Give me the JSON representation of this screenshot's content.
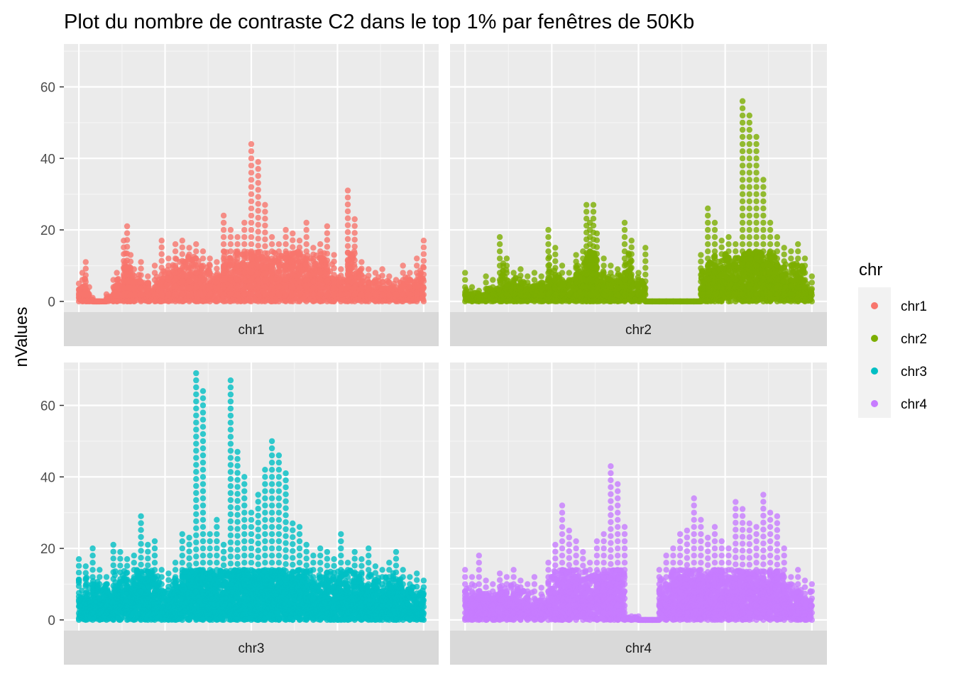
{
  "chart_data": {
    "type": "scatter",
    "title": "Plot du nombre de contraste C2 dans le top 1% par fenêtres de 50Kb",
    "ylabel": "nValues",
    "xlabel": "",
    "ylim": [
      -3,
      72
    ],
    "yticks": [
      0,
      20,
      40,
      60
    ],
    "grid": true,
    "legend": {
      "title": "chr",
      "position": "right",
      "entries": [
        {
          "label": "chr1",
          "color": "#F8766D"
        },
        {
          "label": "chr2",
          "color": "#7CAE00"
        },
        {
          "label": "chr3",
          "color": "#00BFC4"
        },
        {
          "label": "chr4",
          "color": "#C77CFF"
        }
      ]
    },
    "panels": [
      {
        "strip": "chr1",
        "color": "#F8766D",
        "x": [
          0.0,
          0.01,
          0.02,
          0.03,
          0.04,
          0.05,
          0.06,
          0.08,
          0.1,
          0.11,
          0.13,
          0.14,
          0.15,
          0.16,
          0.18,
          0.2,
          0.22,
          0.24,
          0.26,
          0.28,
          0.3,
          0.32,
          0.34,
          0.36,
          0.38,
          0.4,
          0.42,
          0.44,
          0.46,
          0.48,
          0.5,
          0.52,
          0.54,
          0.56,
          0.58,
          0.6,
          0.62,
          0.64,
          0.66,
          0.68,
          0.7,
          0.72,
          0.74,
          0.76,
          0.78,
          0.8,
          0.82,
          0.84,
          0.86,
          0.88,
          0.9,
          0.92,
          0.94,
          0.96,
          0.98,
          1.0
        ],
        "y": [
          5,
          8,
          11,
          4,
          1,
          0,
          0,
          2,
          6,
          8,
          17,
          21,
          13,
          9,
          11,
          7,
          10,
          17,
          12,
          16,
          17,
          15,
          16,
          14,
          12,
          11,
          24,
          20,
          18,
          22,
          44,
          39,
          27,
          18,
          16,
          20,
          19,
          17,
          22,
          15,
          16,
          21,
          13,
          9,
          31,
          23,
          11,
          9,
          8,
          9,
          7,
          6,
          10,
          8,
          12,
          17
        ]
      },
      {
        "strip": "chr2",
        "color": "#7CAE00",
        "x": [
          0.0,
          0.02,
          0.04,
          0.06,
          0.08,
          0.1,
          0.12,
          0.14,
          0.16,
          0.18,
          0.2,
          0.22,
          0.24,
          0.26,
          0.28,
          0.3,
          0.32,
          0.34,
          0.35,
          0.36,
          0.37,
          0.38,
          0.4,
          0.42,
          0.44,
          0.46,
          0.48,
          0.5,
          0.52,
          0.54,
          0.56,
          0.58,
          0.6,
          0.62,
          0.64,
          0.66,
          0.68,
          0.7,
          0.72,
          0.74,
          0.76,
          0.78,
          0.8,
          0.82,
          0.84,
          0.86,
          0.88,
          0.9,
          0.92,
          0.94,
          0.96,
          0.98,
          1.0
        ],
        "y": [
          8,
          4,
          3,
          7,
          6,
          18,
          12,
          8,
          9,
          7,
          8,
          7,
          20,
          15,
          10,
          8,
          13,
          14,
          27,
          22,
          27,
          19,
          12,
          10,
          9,
          22,
          17,
          8,
          15,
          0,
          0,
          0,
          0,
          0,
          0,
          0,
          13,
          26,
          22,
          17,
          18,
          16,
          56,
          52,
          46,
          34,
          22,
          18,
          15,
          14,
          16,
          12,
          7
        ]
      },
      {
        "strip": "chr3",
        "color": "#00BFC4",
        "x": [
          0.0,
          0.02,
          0.04,
          0.06,
          0.08,
          0.1,
          0.12,
          0.14,
          0.16,
          0.18,
          0.2,
          0.22,
          0.24,
          0.26,
          0.28,
          0.3,
          0.32,
          0.34,
          0.36,
          0.38,
          0.4,
          0.42,
          0.44,
          0.46,
          0.48,
          0.5,
          0.52,
          0.54,
          0.56,
          0.58,
          0.6,
          0.62,
          0.64,
          0.66,
          0.68,
          0.7,
          0.72,
          0.74,
          0.76,
          0.78,
          0.8,
          0.82,
          0.84,
          0.86,
          0.88,
          0.9,
          0.92,
          0.94,
          0.96,
          0.98,
          1.0
        ],
        "y": [
          17,
          15,
          20,
          14,
          12,
          21,
          19,
          17,
          18,
          29,
          21,
          22,
          14,
          13,
          16,
          24,
          23,
          69,
          64,
          24,
          28,
          21,
          67,
          47,
          40,
          30,
          35,
          42,
          50,
          46,
          41,
          27,
          26,
          21,
          18,
          20,
          19,
          17,
          24,
          16,
          19,
          17,
          20,
          15,
          14,
          16,
          19,
          14,
          12,
          13,
          11
        ]
      },
      {
        "strip": "chr4",
        "color": "#C77CFF",
        "x": [
          0.0,
          0.02,
          0.04,
          0.06,
          0.08,
          0.1,
          0.12,
          0.14,
          0.16,
          0.18,
          0.2,
          0.22,
          0.24,
          0.26,
          0.28,
          0.3,
          0.32,
          0.34,
          0.36,
          0.38,
          0.4,
          0.42,
          0.44,
          0.46,
          0.48,
          0.5,
          0.52,
          0.54,
          0.56,
          0.58,
          0.6,
          0.62,
          0.64,
          0.66,
          0.68,
          0.7,
          0.72,
          0.74,
          0.76,
          0.78,
          0.8,
          0.82,
          0.84,
          0.86,
          0.88,
          0.9,
          0.92,
          0.94,
          0.96,
          0.98,
          1.0
        ],
        "y": [
          14,
          12,
          18,
          11,
          10,
          13,
          12,
          14,
          11,
          10,
          12,
          9,
          16,
          21,
          32,
          25,
          22,
          19,
          16,
          22,
          24,
          43,
          38,
          26,
          1,
          1,
          0,
          0,
          14,
          18,
          20,
          24,
          25,
          34,
          28,
          23,
          26,
          22,
          20,
          33,
          31,
          27,
          26,
          35,
          30,
          29,
          20,
          12,
          14,
          11,
          10
        ]
      }
    ]
  }
}
